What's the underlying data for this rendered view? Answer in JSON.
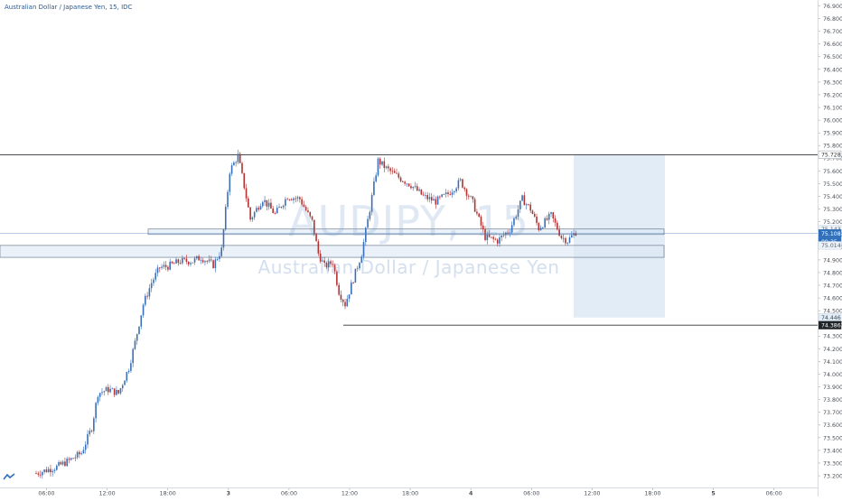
{
  "header": {
    "symbol_title": "Australian Dollar / Japanese Yen, 15, IDC"
  },
  "watermark": {
    "ticker": "AUDJPY, 15",
    "name": "Australian Dollar / Japanese Yen"
  },
  "colors": {
    "up": "#3a6fb6",
    "down": "#b23232",
    "line": "#2f3338",
    "zone": "#dce7f4",
    "box": "#d7e5f3",
    "last": "#2f6fba"
  },
  "price_scale": {
    "labels": [
      "76.900",
      "76.800",
      "76.700",
      "76.600",
      "76.500",
      "76.400",
      "76.300",
      "76.200",
      "76.100",
      "76.000",
      "75.900",
      "75.800",
      "75.700",
      "75.600",
      "75.500",
      "75.400",
      "75.300",
      "75.200",
      "75.100",
      "75.000",
      "74.900",
      "74.800",
      "74.700",
      "74.600",
      "74.500",
      "74.400",
      "74.300",
      "74.200",
      "74.100",
      "74.000",
      "73.900",
      "73.800",
      "73.700",
      "73.600",
      "73.500",
      "73.400",
      "73.300",
      "73.200"
    ],
    "markers": [
      {
        "text": "75.728",
        "style": "line"
      },
      {
        "text": "75.143",
        "style": "zone"
      },
      {
        "text": "75.108",
        "style": "last"
      },
      {
        "text": "09:35",
        "style": "last"
      },
      {
        "text": "75.014",
        "style": "zone"
      },
      {
        "text": "74.446",
        "style": "box"
      },
      {
        "text": "74.386",
        "style": "dark"
      }
    ]
  },
  "time_axis": {
    "labels": [
      "06:00",
      "12:00",
      "18:00",
      "3",
      "06:00",
      "12:00",
      "18:00",
      "4",
      "06:00",
      "12:00",
      "18:00",
      "5",
      "06:00"
    ]
  },
  "chart_data": {
    "type": "candlestick",
    "title": "Australian Dollar / Japanese Yen, 15, IDC",
    "symbol": "AUDJPY",
    "interval": "15",
    "ylim": [
      73.17,
      76.95
    ],
    "x_tick_labels": [
      "06:00",
      "12:00",
      "18:00",
      "3",
      "06:00",
      "12:00",
      "18:00",
      "4",
      "06:00",
      "12:00",
      "18:00",
      "5",
      "06:00"
    ],
    "y_tick_labels": [
      "76.900",
      "76.800",
      "76.700",
      "76.600",
      "76.500",
      "76.400",
      "76.300",
      "76.200",
      "76.100",
      "76.000",
      "75.900",
      "75.800",
      "75.700",
      "75.600",
      "75.500",
      "75.400",
      "75.300",
      "75.200",
      "75.100",
      "75.000",
      "74.900",
      "74.800",
      "74.700",
      "74.600",
      "74.500",
      "74.400",
      "74.300",
      "74.200",
      "74.100",
      "74.000",
      "73.900",
      "73.800",
      "73.700",
      "73.600",
      "73.500",
      "73.400",
      "73.300",
      "73.200"
    ],
    "grid": false,
    "close_path": [
      [
        0,
        73.22
      ],
      [
        10,
        73.27
      ],
      [
        16,
        73.32
      ],
      [
        22,
        73.38
      ],
      [
        27,
        73.58
      ],
      [
        30,
        73.85
      ],
      [
        35,
        73.88
      ],
      [
        40,
        73.85
      ],
      [
        45,
        74.05
      ],
      [
        48,
        74.25
      ],
      [
        52,
        74.55
      ],
      [
        56,
        74.72
      ],
      [
        60,
        74.84
      ],
      [
        64,
        74.85
      ],
      [
        70,
        74.89
      ],
      [
        76,
        74.89
      ],
      [
        80,
        74.92
      ],
      [
        86,
        74.86
      ],
      [
        90,
        74.98
      ],
      [
        94,
        75.6
      ],
      [
        98,
        75.72
      ],
      [
        101,
        75.48
      ],
      [
        104,
        75.22
      ],
      [
        110,
        75.38
      ],
      [
        116,
        75.26
      ],
      [
        122,
        75.4
      ],
      [
        128,
        75.38
      ],
      [
        134,
        75.2
      ],
      [
        137,
        74.95
      ],
      [
        140,
        74.85
      ],
      [
        144,
        74.88
      ],
      [
        147,
        74.65
      ],
      [
        150,
        74.55
      ],
      [
        154,
        74.75
      ],
      [
        158,
        74.95
      ],
      [
        162,
        75.3
      ],
      [
        166,
        75.68
      ],
      [
        170,
        75.62
      ],
      [
        176,
        75.55
      ],
      [
        182,
        75.49
      ],
      [
        188,
        75.4
      ],
      [
        194,
        75.36
      ],
      [
        200,
        75.42
      ],
      [
        206,
        75.52
      ],
      [
        212,
        75.35
      ],
      [
        218,
        75.08
      ],
      [
        224,
        75.05
      ],
      [
        230,
        75.14
      ],
      [
        236,
        75.38
      ],
      [
        240,
        75.3
      ],
      [
        244,
        75.15
      ],
      [
        250,
        75.25
      ],
      [
        255,
        75.08
      ],
      [
        258,
        75.05
      ],
      [
        262,
        75.12
      ]
    ],
    "bars_approx": 263,
    "last_price": 75.108,
    "countdown": "09:35",
    "horizontal_lines": [
      75.728,
      74.386
    ],
    "zones": [
      [
        75.1,
        75.143
      ],
      [
        74.92,
        75.014
      ]
    ],
    "projection_box": [
      74.446,
      75.73
    ],
    "annotations": []
  }
}
